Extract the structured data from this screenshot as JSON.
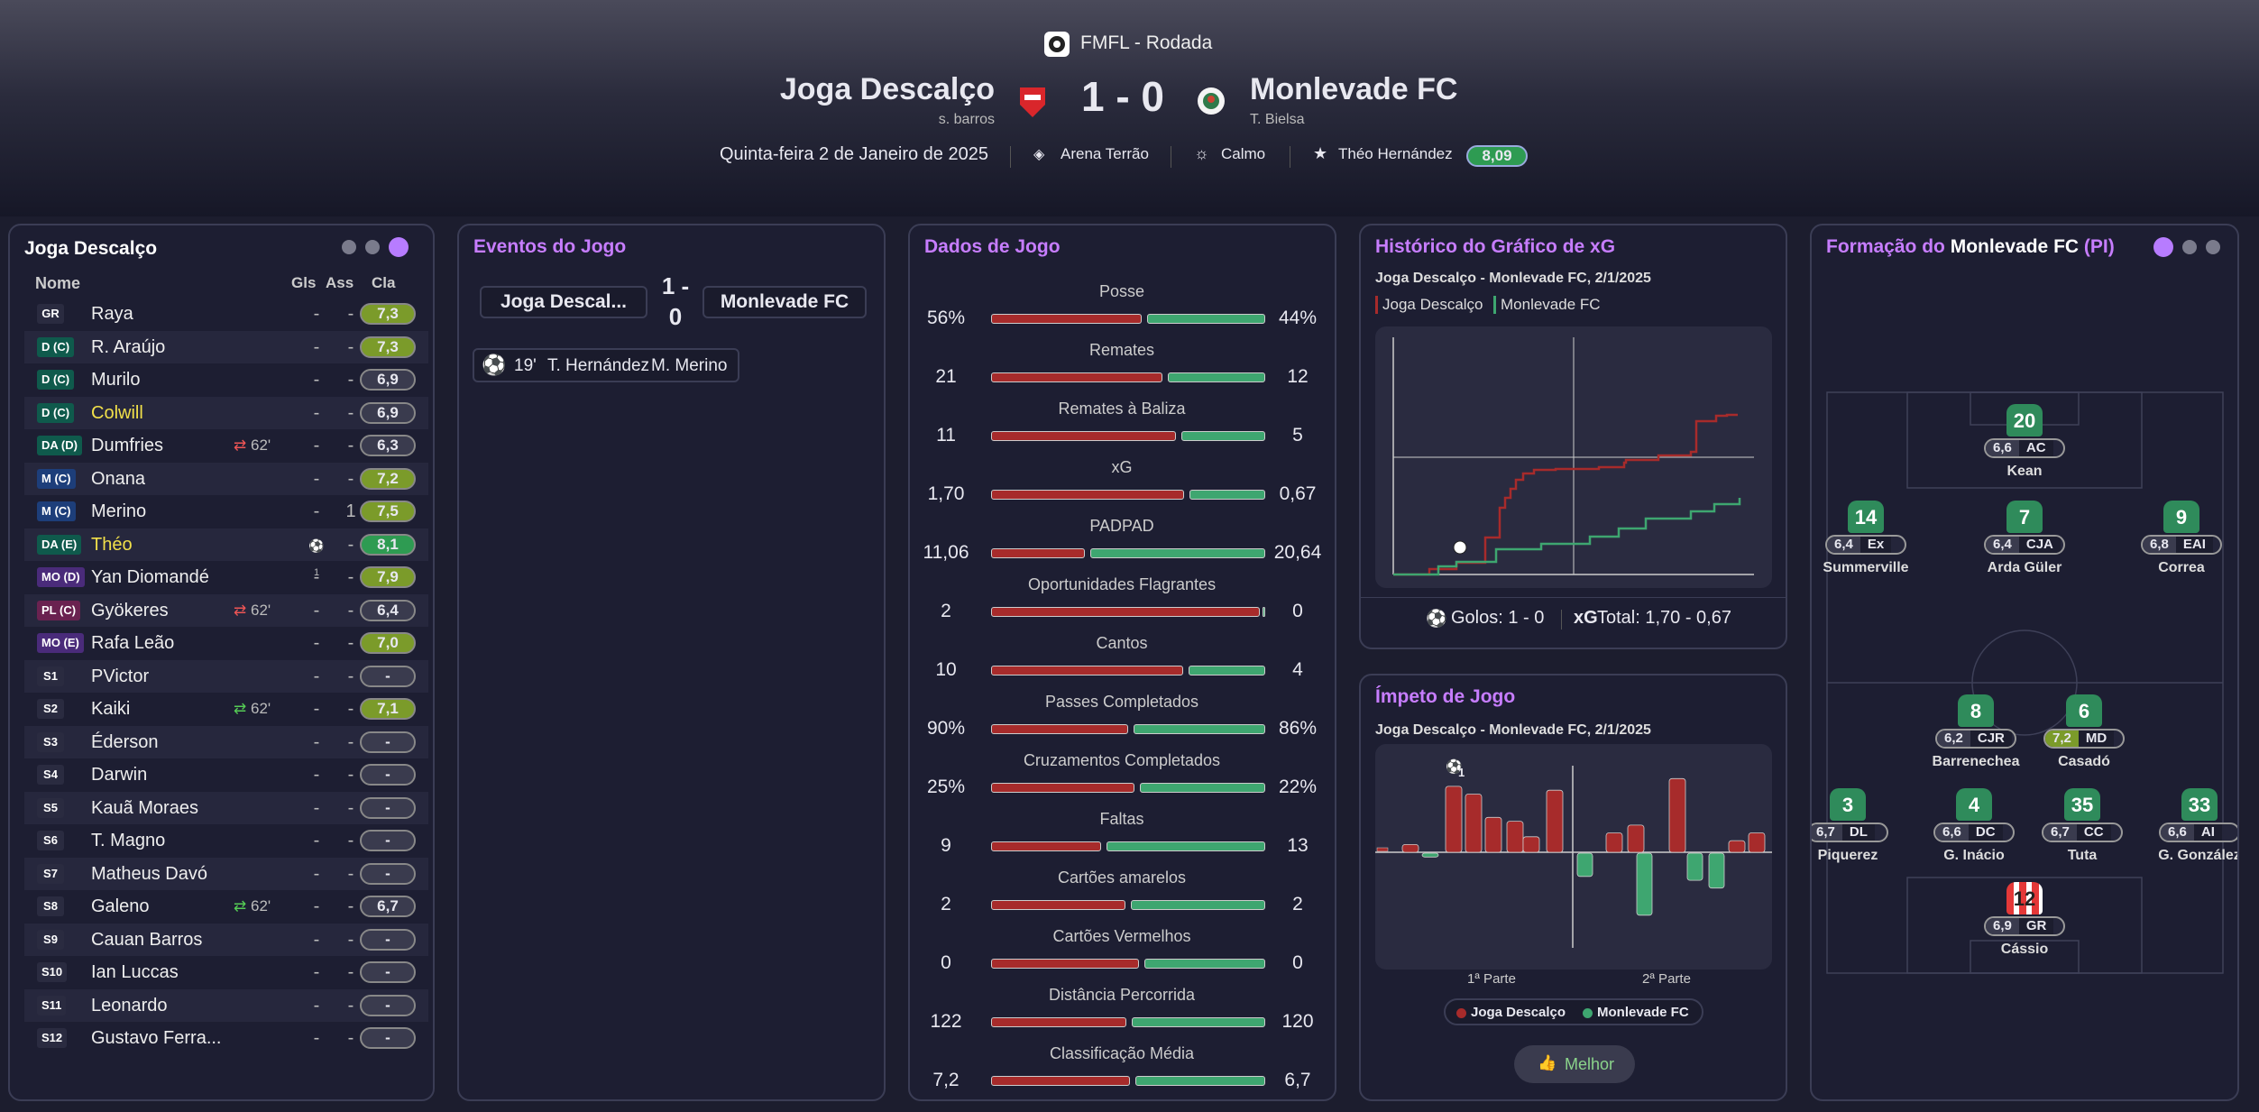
{
  "header": {
    "competition": "FMFL - Rodada",
    "home_team": "Joga Descalço",
    "home_manager": "s. barros",
    "score": "1 - 0",
    "away_team": "Monlevade FC",
    "away_manager": "T. Bielsa",
    "date": "Quinta-feira 2 de Janeiro de 2025",
    "stadium": "Arena Terrão",
    "weather": "Calmo",
    "motm_name": "Théo Hernández",
    "motm_rating": "8,09"
  },
  "lineup": {
    "title": "Joga Descalço",
    "col_name": "Nome",
    "col_gls": "Gls",
    "col_ass": "Ass",
    "col_cla": "Cla",
    "players": [
      {
        "pos": "GR",
        "name": "Raya",
        "gls": "-",
        "ass": "-",
        "rating": "7,3",
        "pc": "#2a2b40",
        "rc": "#7b9b2a"
      },
      {
        "pos": "D (C)",
        "name": "R. Araújo",
        "gls": "-",
        "ass": "-",
        "rating": "7,3",
        "pc": "#0f5a4c",
        "rc": "#7b9b2a"
      },
      {
        "pos": "D (C)",
        "name": "Murilo",
        "gls": "-",
        "ass": "-",
        "rating": "6,9",
        "pc": "#0f5a4c",
        "rc": "#3a3b4e"
      },
      {
        "pos": "D (C)",
        "name": "Colwill",
        "gls": "-",
        "ass": "-",
        "rating": "6,9",
        "pc": "#0f5a4c",
        "rc": "#3a3b4e",
        "yellow": true
      },
      {
        "pos": "DA (D)",
        "name": "Dumfries",
        "sub": "62'",
        "subdir": "out",
        "gls": "-",
        "ass": "-",
        "rating": "6,3",
        "pc": "#0f5a4c",
        "rc": "#3a3b4e"
      },
      {
        "pos": "M (C)",
        "name": "Onana",
        "gls": "-",
        "ass": "-",
        "rating": "7,2",
        "pc": "#1d3e7a",
        "rc": "#7b9b2a"
      },
      {
        "pos": "M (C)",
        "name": "Merino",
        "gls": "-",
        "ass": "1",
        "rating": "7,5",
        "pc": "#1d3e7a",
        "rc": "#7b9b2a"
      },
      {
        "pos": "DA (E)",
        "name": "Théo",
        "goal": "1",
        "ass": "-",
        "rating": "8,1",
        "pc": "#0f5a4c",
        "rc": "#2e9b52",
        "yellow": true
      },
      {
        "pos": "MO (D)",
        "name": "Yan Diomandé",
        "gls": "-",
        "ass": "-",
        "rating": "7,9",
        "pc": "#4a2b7a",
        "rc": "#7b9b2a"
      },
      {
        "pos": "PL (C)",
        "name": "Gyökeres",
        "sub": "62'",
        "subdir": "out",
        "gls": "-",
        "ass": "-",
        "rating": "6,4",
        "pc": "#6a2250",
        "rc": "#3a3b4e"
      },
      {
        "pos": "MO (E)",
        "name": "Rafa Leão",
        "gls": "-",
        "ass": "-",
        "rating": "7,0",
        "pc": "#4a2b7a",
        "rc": "#7b9b2a"
      },
      {
        "pos": "S1",
        "name": "PVictor",
        "gls": "-",
        "ass": "-",
        "rating": "-",
        "pc": "#2a2b40",
        "rc": "#3a3b4e"
      },
      {
        "pos": "S2",
        "name": "Kaiki",
        "sub": "62'",
        "subdir": "in",
        "gls": "-",
        "ass": "-",
        "rating": "7,1",
        "pc": "#2a2b40",
        "rc": "#7b9b2a"
      },
      {
        "pos": "S3",
        "name": "Éderson",
        "gls": "-",
        "ass": "-",
        "rating": "-",
        "pc": "#2a2b40",
        "rc": "#3a3b4e"
      },
      {
        "pos": "S4",
        "name": "Darwin",
        "gls": "-",
        "ass": "-",
        "rating": "-",
        "pc": "#2a2b40",
        "rc": "#3a3b4e"
      },
      {
        "pos": "S5",
        "name": "Kauã Moraes",
        "gls": "-",
        "ass": "-",
        "rating": "-",
        "pc": "#2a2b40",
        "rc": "#3a3b4e"
      },
      {
        "pos": "S6",
        "name": "T. Magno",
        "gls": "-",
        "ass": "-",
        "rating": "-",
        "pc": "#2a2b40",
        "rc": "#3a3b4e"
      },
      {
        "pos": "S7",
        "name": "Matheus Davó",
        "gls": "-",
        "ass": "-",
        "rating": "-",
        "pc": "#2a2b40",
        "rc": "#3a3b4e"
      },
      {
        "pos": "S8",
        "name": "Galeno",
        "sub": "62'",
        "subdir": "in",
        "gls": "-",
        "ass": "-",
        "rating": "6,7",
        "pc": "#2a2b40",
        "rc": "#3a3b4e"
      },
      {
        "pos": "S9",
        "name": "Cauan Barros",
        "gls": "-",
        "ass": "-",
        "rating": "-",
        "pc": "#2a2b40",
        "rc": "#3a3b4e"
      },
      {
        "pos": "S10",
        "name": "Ian Luccas",
        "gls": "-",
        "ass": "-",
        "rating": "-",
        "pc": "#2a2b40",
        "rc": "#3a3b4e"
      },
      {
        "pos": "S11",
        "name": "Leonardo",
        "gls": "-",
        "ass": "-",
        "rating": "-",
        "pc": "#2a2b40",
        "rc": "#3a3b4e"
      },
      {
        "pos": "S12",
        "name": "Gustavo Ferra...",
        "gls": "-",
        "ass": "-",
        "rating": "-",
        "pc": "#2a2b40",
        "rc": "#3a3b4e"
      }
    ]
  },
  "events": {
    "title": "Eventos do Jogo",
    "home": "Joga Descal...",
    "score_line1": "1 -",
    "score_line2": "0",
    "away": "Monlevade FC",
    "event_minute": "19'",
    "event_scorer": "T. Hernández",
    "event_assist": "M. Merino"
  },
  "stats": {
    "title": "Dados de Jogo",
    "rows": [
      {
        "label": "Posse",
        "home": "56%",
        "away": "44%",
        "h": 56,
        "a": 44
      },
      {
        "label": "Remates",
        "home": "21",
        "away": "12",
        "h": 21,
        "a": 12
      },
      {
        "label": "Remates à Baliza",
        "home": "11",
        "away": "5",
        "h": 11,
        "a": 5
      },
      {
        "label": "xG",
        "home": "1,70",
        "away": "0,67",
        "h": 1.7,
        "a": 0.67
      },
      {
        "label": "PADPAD",
        "home": "11,06",
        "away": "20,64",
        "h": 11.06,
        "a": 20.64
      },
      {
        "label": "Oportunidades Flagrantes",
        "home": "2",
        "away": "0",
        "h": 2,
        "a": 0
      },
      {
        "label": "Cantos",
        "home": "10",
        "away": "4",
        "h": 10,
        "a": 4
      },
      {
        "label": "Passes Completados",
        "home": "90%",
        "away": "86%",
        "h": 90,
        "a": 86
      },
      {
        "label": "Cruzamentos Completados",
        "home": "25%",
        "away": "22%",
        "h": 25,
        "a": 22
      },
      {
        "label": "Faltas",
        "home": "9",
        "away": "13",
        "h": 9,
        "a": 13
      },
      {
        "label": "Cartões amarelos",
        "home": "2",
        "away": "2",
        "h": 2,
        "a": 2
      },
      {
        "label": "Cartões Vermelhos",
        "home": "0",
        "away": "0",
        "h": 0,
        "a": 0
      },
      {
        "label": "Distância Percorrida",
        "home": "122",
        "away": "120",
        "h": 122,
        "a": 120
      },
      {
        "label": "Classificação Média",
        "home": "7,2",
        "away": "6,7",
        "h": 7.2,
        "a": 6.7
      }
    ]
  },
  "xg": {
    "title": "Histórico do Gráfico de xG",
    "subtitle": "Joga Descalço - Monlevade FC, 2/1/2025",
    "legend_home": "Joga Descalço",
    "legend_away": "Monlevade FC",
    "goals_label": "Golos: 1 - 0",
    "xg_label": "xG",
    "xg_total": "Total: 1,70 - 0,67"
  },
  "momentum": {
    "title": "Ímpeto de Jogo",
    "subtitle": "Joga Descalço - Monlevade FC, 2/1/2025",
    "first_half": "1ª Parte",
    "second_half": "2ª Parte",
    "legend_home": "Joga Descalço",
    "legend_away": "Monlevade FC",
    "goal_count": "1",
    "best_button": "Melhor"
  },
  "formation": {
    "title_prefix": "Formação do ",
    "team": "Monlevade FC",
    "suffix": "(PI)",
    "players": [
      {
        "num": "20",
        "rating": "6,6",
        "pos": "AC",
        "name": "Kean"
      },
      {
        "num": "14",
        "rating": "6,4",
        "pos": "Ex",
        "name": "Summerville"
      },
      {
        "num": "7",
        "rating": "6,4",
        "pos": "CJA",
        "name": "Arda Güler"
      },
      {
        "num": "9",
        "rating": "6,8",
        "pos": "EAI",
        "name": "Correa"
      },
      {
        "num": "8",
        "rating": "6,2",
        "pos": "CJR",
        "name": "Barrenechea"
      },
      {
        "num": "6",
        "rating": "7,2",
        "pos": "MD",
        "name": "Casadó"
      },
      {
        "num": "3",
        "rating": "6,7",
        "pos": "DL",
        "name": "Piquerez"
      },
      {
        "num": "4",
        "rating": "6,6",
        "pos": "DC",
        "name": "G. Inácio"
      },
      {
        "num": "35",
        "rating": "6,7",
        "pos": "CC",
        "name": "Tuta"
      },
      {
        "num": "33",
        "rating": "6,6",
        "pos": "AI",
        "name": "G. González"
      },
      {
        "num": "12",
        "rating": "6,9",
        "pos": "GR",
        "name": "Cássio"
      }
    ]
  },
  "colors": {
    "home": "#a72b2b",
    "away": "#3ea670",
    "accent": "#c77dff"
  },
  "chart_data": {
    "type": "bar",
    "series": [
      {
        "name": "Joga Descalço",
        "values": [
          1,
          2,
          17,
          15,
          9,
          8,
          4,
          16,
          5,
          7,
          19,
          3,
          5
        ]
      },
      {
        "name": "Monlevade FC",
        "values": [
          1,
          6,
          16,
          7,
          9
        ]
      }
    ]
  }
}
